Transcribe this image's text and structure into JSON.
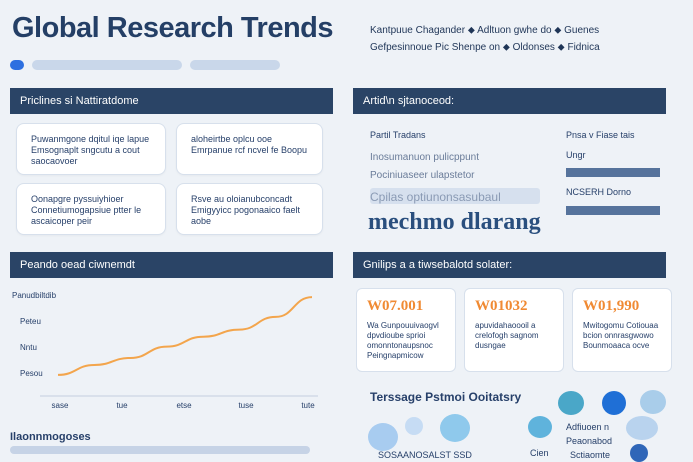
{
  "title": "Global Research Trends",
  "top_nav": {
    "line1": "Kantpuue  Chagander  ⬥ Adltuon gwhe do  ⬥ Guenes",
    "line2": "Gefpesinnoue  Pic Shenpe on  ⬥ Oldonses  ⬥ Fidnica"
  },
  "sections": {
    "s1": "Priclines si Nattiratdome",
    "s2": "Artid\\n sjtanoceod:",
    "s3": "Peando oead ciwnemdt",
    "s4": "Gnilips a a tiwsebalotd solater:"
  },
  "cards": {
    "c1": "Puwanmgone dqitul iqe lapue Emsognaplt sngcutu a cout saocaovoer",
    "c2": "aloheirtbe oplcu ooe Emrpanue rcf ncvel fe Boopu",
    "c3": "Oonapgre pyssuiyhioer Connetiumogapsiue ptter le ascaicoper peir",
    "c4": "Rsve au oloianubconcadt Emigyyicc pogonaaico faelt aobe"
  },
  "research_panel": {
    "left_label": "Partil Tradans",
    "right_label": "Pnsa v Fiase tais",
    "soft1": "Inosumanuon pulicppunt",
    "soft2": "Pociniuaseer ulapstetor",
    "soft3": "Cpilas optiunonsasubaul",
    "big_word": "mechmo dlarang",
    "mini1": "Ungr",
    "mini2": "NCSERH Dorno"
  },
  "chart_data": {
    "type": "line",
    "title": "",
    "ylabel": "",
    "y_ticks": [
      "Panudbiltdib",
      "Peteu",
      "Nntu",
      "Pesou"
    ],
    "x_ticks": [
      "sase",
      "tue",
      "etse",
      "tuse",
      "tute"
    ],
    "series": [
      {
        "values": [
          0.5,
          1.2,
          1.7,
          2.5,
          3.2,
          3.7,
          4.6,
          6.0
        ]
      }
    ],
    "color": "#f3a54c"
  },
  "stats": [
    {
      "num": "W07.001",
      "desc": "Wa Gunpouuivaogvl dpvdioube sprioi omonntonaupsnoc Peingnapmicow"
    },
    {
      "num": "W01032",
      "desc": "apuvidahaoooil a crelofogh sagnom dusngae"
    },
    {
      "num": "W01,990",
      "desc": "Mwitogomu Cotiouaa bcion onnrasgwowo Bounmoaaca ocve"
    }
  ],
  "partners": {
    "head": "Terssage Pstmoi Ooitatsry",
    "t1": "Adfiuoen n",
    "t2": "Peaonabod",
    "t3": "Sctiaomte",
    "t4": "Cien",
    "t5": "SOSAANOSALST SSD"
  },
  "footer_title": "Ilaonnmogoses"
}
